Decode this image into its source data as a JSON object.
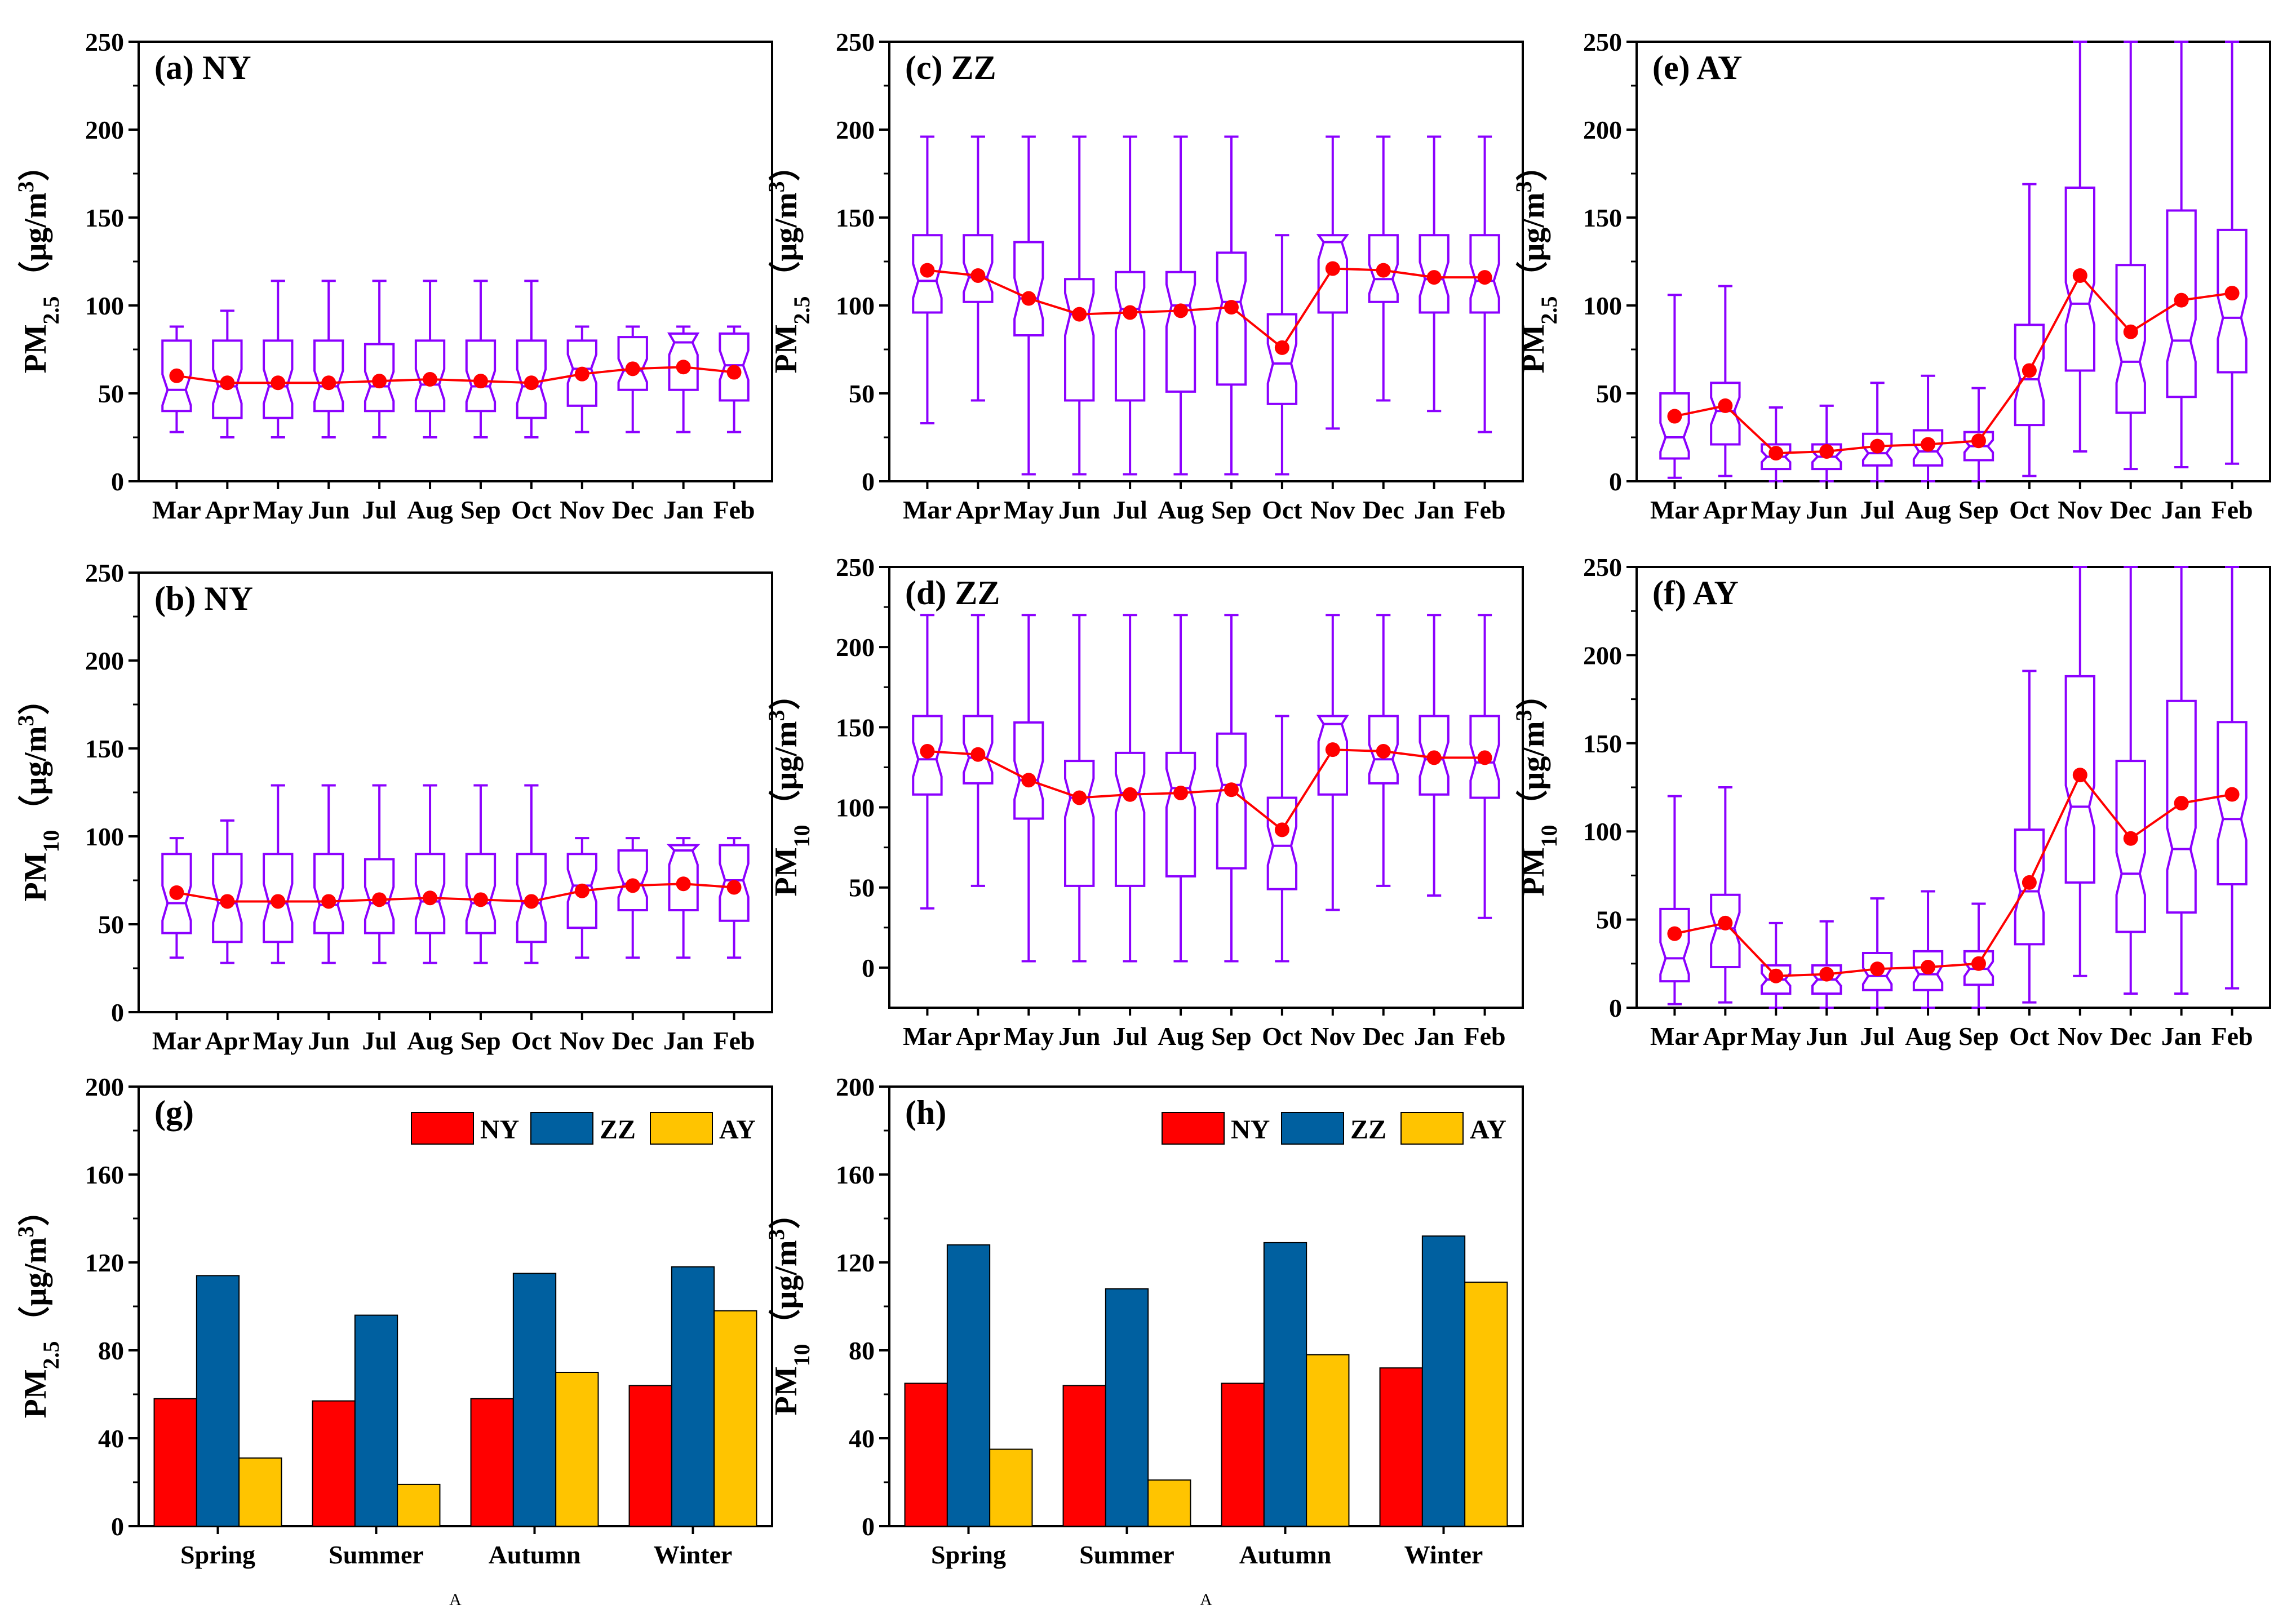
{
  "figure": {
    "month_labels": [
      "Mar",
      "Apr",
      "May",
      "Jun",
      "Jul",
      "Aug",
      "Sep",
      "Oct",
      "Nov",
      "Dec",
      "Jan",
      "Feb"
    ],
    "season_labels": [
      "Spring",
      "Summer",
      "Autumn",
      "Winter"
    ],
    "box_color": "#8b00ff",
    "mean_color": "#ff0000",
    "stray_marks": [
      "A",
      "A"
    ]
  },
  "chart_data": [
    {
      "id": "a",
      "type": "box",
      "label": "(a) NY",
      "ylabel_main": "PM",
      "ylabel_sub": "2.5",
      "ylabel_unit": "（μg/m",
      "ylabel_sup": "3",
      "ylabel_close": "）",
      "ylim": [
        0,
        250
      ],
      "yticks": [
        0,
        50,
        100,
        150,
        200,
        250
      ],
      "boxes": [
        {
          "wlo": 28,
          "q1": 40,
          "med": 52,
          "q3": 80,
          "whi": 88,
          "mean": 60
        },
        {
          "wlo": 25,
          "q1": 36,
          "med": 54,
          "q3": 80,
          "whi": 97,
          "mean": 56
        },
        {
          "wlo": 25,
          "q1": 36,
          "med": 54,
          "q3": 80,
          "whi": 114,
          "mean": 56
        },
        {
          "wlo": 25,
          "q1": 40,
          "med": 54,
          "q3": 80,
          "whi": 114,
          "mean": 56
        },
        {
          "wlo": 25,
          "q1": 40,
          "med": 54,
          "q3": 78,
          "whi": 114,
          "mean": 57
        },
        {
          "wlo": 25,
          "q1": 40,
          "med": 55,
          "q3": 80,
          "whi": 114,
          "mean": 58
        },
        {
          "wlo": 25,
          "q1": 40,
          "med": 54,
          "q3": 80,
          "whi": 114,
          "mean": 57
        },
        {
          "wlo": 25,
          "q1": 36,
          "med": 54,
          "q3": 80,
          "whi": 114,
          "mean": 56
        },
        {
          "wlo": 28,
          "q1": 43,
          "med": 64,
          "q3": 80,
          "whi": 88,
          "mean": 61
        },
        {
          "wlo": 28,
          "q1": 52,
          "med": 63,
          "q3": 82,
          "whi": 88,
          "mean": 64
        },
        {
          "wlo": 28,
          "q1": 52,
          "med": 79,
          "q3": 84,
          "whi": 88,
          "mean": 65
        },
        {
          "wlo": 28,
          "q1": 46,
          "med": 66,
          "q3": 84,
          "whi": 88,
          "mean": 62
        }
      ]
    },
    {
      "id": "c",
      "type": "box",
      "label": "(c) ZZ",
      "ylabel_main": "PM",
      "ylabel_sub": "2.5",
      "ylabel_unit": "（μg/m",
      "ylabel_sup": "3",
      "ylabel_close": "）",
      "ylim": [
        0,
        250
      ],
      "yticks": [
        0,
        50,
        100,
        150,
        200,
        250
      ],
      "boxes": [
        {
          "wlo": 33,
          "q1": 96,
          "med": 114,
          "q3": 140,
          "whi": 196,
          "mean": 120
        },
        {
          "wlo": 46,
          "q1": 102,
          "med": 116,
          "q3": 140,
          "whi": 196,
          "mean": 117
        },
        {
          "wlo": 4,
          "q1": 83,
          "med": 104,
          "q3": 136,
          "whi": 196,
          "mean": 104
        },
        {
          "wlo": 4,
          "q1": 46,
          "med": 95,
          "q3": 115,
          "whi": 196,
          "mean": 95
        },
        {
          "wlo": 4,
          "q1": 46,
          "med": 98,
          "q3": 119,
          "whi": 196,
          "mean": 96
        },
        {
          "wlo": 4,
          "q1": 51,
          "med": 100,
          "q3": 119,
          "whi": 196,
          "mean": 97
        },
        {
          "wlo": 4,
          "q1": 55,
          "med": 102,
          "q3": 130,
          "whi": 196,
          "mean": 99
        },
        {
          "wlo": 4,
          "q1": 44,
          "med": 67,
          "q3": 95,
          "whi": 140,
          "mean": 76
        },
        {
          "wlo": 30,
          "q1": 96,
          "med": 136,
          "q3": 140,
          "whi": 196,
          "mean": 121
        },
        {
          "wlo": 46,
          "q1": 102,
          "med": 115,
          "q3": 140,
          "whi": 196,
          "mean": 120
        },
        {
          "wlo": 40,
          "q1": 96,
          "med": 115,
          "q3": 140,
          "whi": 196,
          "mean": 116
        },
        {
          "wlo": 28,
          "q1": 96,
          "med": 114,
          "q3": 140,
          "whi": 196,
          "mean": 116
        }
      ]
    },
    {
      "id": "e",
      "type": "box",
      "label": "(e) AY",
      "ylabel_main": "PM",
      "ylabel_sub": "2.5",
      "ylabel_unit": "（μg/m",
      "ylabel_sup": "3",
      "ylabel_close": "）",
      "ylim": [
        0,
        250
      ],
      "yticks": [
        0,
        50,
        100,
        150,
        200,
        250
      ],
      "boxes": [
        {
          "wlo": 2,
          "q1": 13,
          "med": 25,
          "q3": 50,
          "whi": 106,
          "mean": 37
        },
        {
          "wlo": 3,
          "q1": 21,
          "med": 40,
          "q3": 56,
          "whi": 111,
          "mean": 43
        },
        {
          "wlo": 0,
          "q1": 7,
          "med": 14,
          "q3": 21,
          "whi": 42,
          "mean": 16
        },
        {
          "wlo": 0,
          "q1": 7,
          "med": 14,
          "q3": 21,
          "whi": 43,
          "mean": 17
        },
        {
          "wlo": 0,
          "q1": 9,
          "med": 16,
          "q3": 27,
          "whi": 56,
          "mean": 20
        },
        {
          "wlo": 0,
          "q1": 9,
          "med": 17,
          "q3": 29,
          "whi": 60,
          "mean": 21
        },
        {
          "wlo": 0,
          "q1": 12,
          "med": 20,
          "q3": 28,
          "whi": 53,
          "mean": 23
        },
        {
          "wlo": 3,
          "q1": 32,
          "med": 58,
          "q3": 89,
          "whi": 169,
          "mean": 63
        },
        {
          "wlo": 17,
          "q1": 63,
          "med": 101,
          "q3": 167,
          "whi": 250,
          "mean": 117
        },
        {
          "wlo": 7,
          "q1": 39,
          "med": 68,
          "q3": 123,
          "whi": 250,
          "mean": 85
        },
        {
          "wlo": 8,
          "q1": 48,
          "med": 80,
          "q3": 154,
          "whi": 250,
          "mean": 103
        },
        {
          "wlo": 10,
          "q1": 62,
          "med": 93,
          "q3": 143,
          "whi": 250,
          "mean": 107
        }
      ]
    },
    {
      "id": "b",
      "type": "box",
      "label": "(b) NY",
      "ylabel_main": "PM",
      "ylabel_sub": "10",
      "ylabel_unit": "（μg/m",
      "ylabel_sup": "3",
      "ylabel_close": "）",
      "ylim": [
        0,
        250
      ],
      "yticks": [
        0,
        50,
        100,
        150,
        200,
        250
      ],
      "boxes": [
        {
          "wlo": 31,
          "q1": 45,
          "med": 62,
          "q3": 90,
          "whi": 99,
          "mean": 68
        },
        {
          "wlo": 28,
          "q1": 40,
          "med": 62,
          "q3": 90,
          "whi": 109,
          "mean": 63
        },
        {
          "wlo": 28,
          "q1": 40,
          "med": 62,
          "q3": 90,
          "whi": 129,
          "mean": 63
        },
        {
          "wlo": 28,
          "q1": 45,
          "med": 61,
          "q3": 90,
          "whi": 129,
          "mean": 63
        },
        {
          "wlo": 28,
          "q1": 45,
          "med": 62,
          "q3": 87,
          "whi": 129,
          "mean": 64
        },
        {
          "wlo": 28,
          "q1": 45,
          "med": 63,
          "q3": 90,
          "whi": 129,
          "mean": 65
        },
        {
          "wlo": 28,
          "q1": 45,
          "med": 62,
          "q3": 90,
          "whi": 129,
          "mean": 64
        },
        {
          "wlo": 28,
          "q1": 40,
          "med": 62,
          "q3": 90,
          "whi": 129,
          "mean": 63
        },
        {
          "wlo": 31,
          "q1": 48,
          "med": 72,
          "q3": 90,
          "whi": 99,
          "mean": 69
        },
        {
          "wlo": 31,
          "q1": 58,
          "med": 73,
          "q3": 92,
          "whi": 99,
          "mean": 72
        },
        {
          "wlo": 31,
          "q1": 58,
          "med": 92,
          "q3": 95,
          "whi": 99,
          "mean": 73
        },
        {
          "wlo": 31,
          "q1": 52,
          "med": 75,
          "q3": 95,
          "whi": 99,
          "mean": 71
        }
      ]
    },
    {
      "id": "d",
      "type": "box",
      "label": "(d) ZZ",
      "ylabel_main": "PM",
      "ylabel_sub": "10",
      "ylabel_unit": "（μg/m",
      "ylabel_sup": "3",
      "ylabel_close": "）",
      "ylim": [
        -25,
        250
      ],
      "yticks": [
        0,
        50,
        100,
        150,
        200,
        250
      ],
      "boxes": [
        {
          "wlo": 37,
          "q1": 108,
          "med": 130,
          "q3": 157,
          "whi": 220,
          "mean": 135
        },
        {
          "wlo": 51,
          "q1": 115,
          "med": 131,
          "q3": 157,
          "whi": 220,
          "mean": 133
        },
        {
          "wlo": 4,
          "q1": 93,
          "med": 117,
          "q3": 153,
          "whi": 220,
          "mean": 117
        },
        {
          "wlo": 4,
          "q1": 51,
          "med": 106,
          "q3": 129,
          "whi": 220,
          "mean": 106
        },
        {
          "wlo": 4,
          "q1": 51,
          "med": 109,
          "q3": 134,
          "whi": 220,
          "mean": 108
        },
        {
          "wlo": 4,
          "q1": 57,
          "med": 112,
          "q3": 134,
          "whi": 220,
          "mean": 109
        },
        {
          "wlo": 4,
          "q1": 62,
          "med": 114,
          "q3": 146,
          "whi": 220,
          "mean": 111
        },
        {
          "wlo": 4,
          "q1": 49,
          "med": 76,
          "q3": 106,
          "whi": 157,
          "mean": 86
        },
        {
          "wlo": 36,
          "q1": 108,
          "med": 152,
          "q3": 157,
          "whi": 220,
          "mean": 136
        },
        {
          "wlo": 51,
          "q1": 115,
          "med": 130,
          "q3": 157,
          "whi": 220,
          "mean": 135
        },
        {
          "wlo": 45,
          "q1": 108,
          "med": 130,
          "q3": 157,
          "whi": 220,
          "mean": 131
        },
        {
          "wlo": 31,
          "q1": 106,
          "med": 128,
          "q3": 157,
          "whi": 220,
          "mean": 131
        }
      ]
    },
    {
      "id": "f",
      "type": "box",
      "label": "(f) AY",
      "ylabel_main": "PM",
      "ylabel_sub": "10",
      "ylabel_unit": "（μg/m",
      "ylabel_sup": "3",
      "ylabel_close": "）",
      "ylim": [
        0,
        250
      ],
      "yticks": [
        0,
        50,
        100,
        150,
        200,
        250
      ],
      "boxes": [
        {
          "wlo": 2,
          "q1": 15,
          "med": 28,
          "q3": 56,
          "whi": 120,
          "mean": 42
        },
        {
          "wlo": 3,
          "q1": 23,
          "med": 45,
          "q3": 64,
          "whi": 125,
          "mean": 48
        },
        {
          "wlo": 0,
          "q1": 8,
          "med": 16,
          "q3": 24,
          "whi": 48,
          "mean": 18
        },
        {
          "wlo": 0,
          "q1": 8,
          "med": 16,
          "q3": 24,
          "whi": 49,
          "mean": 19
        },
        {
          "wlo": 0,
          "q1": 10,
          "med": 18,
          "q3": 31,
          "whi": 62,
          "mean": 22
        },
        {
          "wlo": 0,
          "q1": 10,
          "med": 19,
          "q3": 32,
          "whi": 66,
          "mean": 23
        },
        {
          "wlo": 0,
          "q1": 13,
          "med": 22,
          "q3": 32,
          "whi": 59,
          "mean": 25
        },
        {
          "wlo": 3,
          "q1": 36,
          "med": 66,
          "q3": 101,
          "whi": 191,
          "mean": 71
        },
        {
          "wlo": 18,
          "q1": 71,
          "med": 114,
          "q3": 188,
          "whi": 250,
          "mean": 132
        },
        {
          "wlo": 8,
          "q1": 43,
          "med": 76,
          "q3": 140,
          "whi": 250,
          "mean": 96
        },
        {
          "wlo": 8,
          "q1": 54,
          "med": 90,
          "q3": 174,
          "whi": 250,
          "mean": 116
        },
        {
          "wlo": 11,
          "q1": 70,
          "med": 107,
          "q3": 162,
          "whi": 250,
          "mean": 121
        }
      ]
    },
    {
      "id": "g",
      "type": "bar",
      "label": "(g)",
      "ylabel_main": "PM",
      "ylabel_sub": "2.5",
      "ylabel_unit": "（μg/m",
      "ylabel_sup": "3",
      "ylabel_close": "）",
      "ylim": [
        0,
        200
      ],
      "yticks": [
        0,
        40,
        80,
        120,
        160,
        200
      ],
      "categories": [
        "Spring",
        "Summer",
        "Autumn",
        "Winter"
      ],
      "series": [
        {
          "name": "NY",
          "color": "#ff0000",
          "values": [
            58,
            57,
            58,
            64
          ]
        },
        {
          "name": "ZZ",
          "color": "#0060a0",
          "values": [
            114,
            96,
            115,
            118
          ]
        },
        {
          "name": "AY",
          "color": "#ffc400",
          "values": [
            31,
            19,
            70,
            98
          ]
        }
      ]
    },
    {
      "id": "h",
      "type": "bar",
      "label": "(h)",
      "ylabel_main": "PM",
      "ylabel_sub": "10",
      "ylabel_unit": "（μg/m",
      "ylabel_sup": "3",
      "ylabel_close": "）",
      "ylim": [
        0,
        200
      ],
      "yticks": [
        0,
        40,
        80,
        120,
        160,
        200
      ],
      "categories": [
        "Spring",
        "Summer",
        "Autumn",
        "Winter"
      ],
      "series": [
        {
          "name": "NY",
          "color": "#ff0000",
          "values": [
            65,
            64,
            65,
            72
          ]
        },
        {
          "name": "ZZ",
          "color": "#0060a0",
          "values": [
            128,
            108,
            129,
            132
          ]
        },
        {
          "name": "AY",
          "color": "#ffc400",
          "values": [
            35,
            21,
            78,
            111
          ]
        }
      ]
    }
  ]
}
